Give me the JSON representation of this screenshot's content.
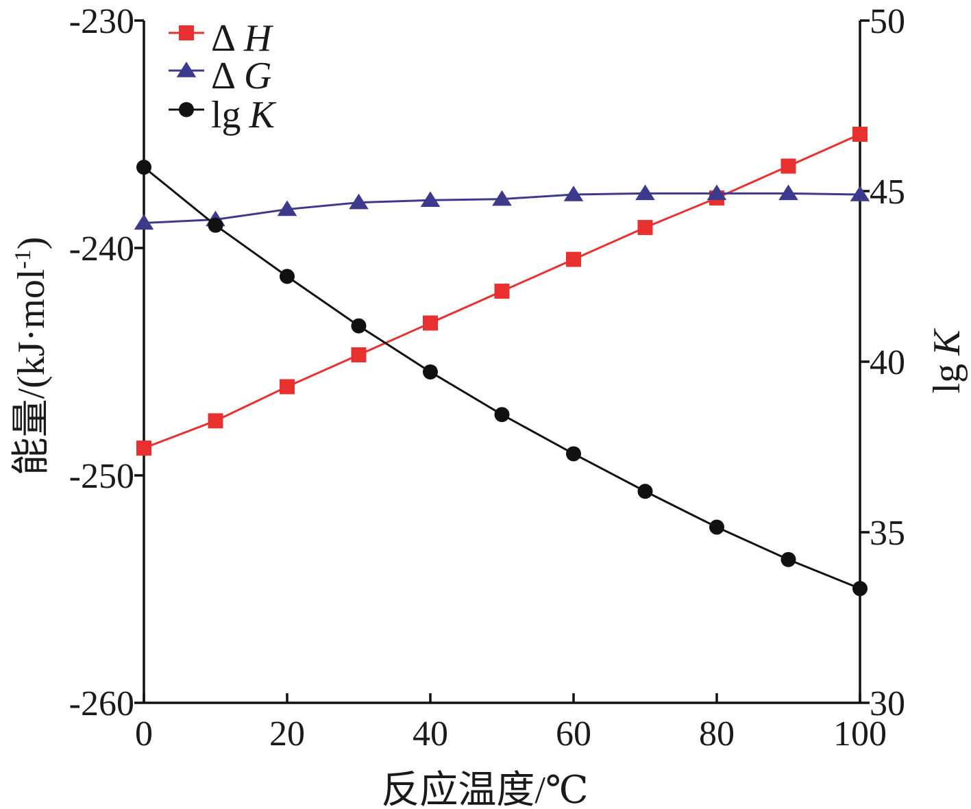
{
  "chart_data": {
    "type": "line",
    "x": [
      0,
      10,
      20,
      30,
      40,
      50,
      60,
      70,
      80,
      90,
      100
    ],
    "xlabel": "反应温度/℃",
    "xlim": [
      0,
      100
    ],
    "xticks": [
      "0",
      "20",
      "40",
      "60",
      "80",
      "100"
    ],
    "ylabel_left": "能量/(kJ·mol-1)",
    "ylabel_left_parts": {
      "main": "能量/(kJ·mol",
      "sup": "-1",
      "close": ")"
    },
    "ylim_left": [
      -260,
      -230
    ],
    "yticks_left": [
      "-230",
      "-240",
      "-250",
      "-260"
    ],
    "ylabel_right": "lg K",
    "ylim_right": [
      30,
      50
    ],
    "yticks_right": [
      "50",
      "45",
      "40",
      "35",
      "30"
    ],
    "grid": false,
    "legend_position": "top-left",
    "series": [
      {
        "name": "ΔH",
        "name_parts": {
          "symbol": "Δ",
          "var": "H"
        },
        "axis": "left",
        "marker": "square",
        "color": "#e8302f",
        "values": [
          -248.8,
          -247.6,
          -246.1,
          -244.7,
          -243.3,
          -241.9,
          -240.5,
          -239.1,
          -237.8,
          -236.4,
          -235.0
        ]
      },
      {
        "name": "ΔG",
        "name_parts": {
          "symbol": "Δ",
          "var": "G"
        },
        "axis": "left",
        "marker": "triangle",
        "color": "#3d3a8c",
        "values": [
          -238.9,
          -238.75,
          -238.3,
          -238.0,
          -237.9,
          -237.85,
          -237.65,
          -237.6,
          -237.6,
          -237.6,
          -237.65
        ]
      },
      {
        "name": "lg K",
        "name_parts": {
          "symbol": "lg",
          "var": "K"
        },
        "axis": "right",
        "marker": "circle",
        "color": "#111111",
        "values": [
          45.7,
          44.0,
          42.5,
          41.05,
          39.7,
          38.45,
          37.3,
          36.2,
          35.15,
          34.2,
          33.35
        ]
      }
    ]
  }
}
